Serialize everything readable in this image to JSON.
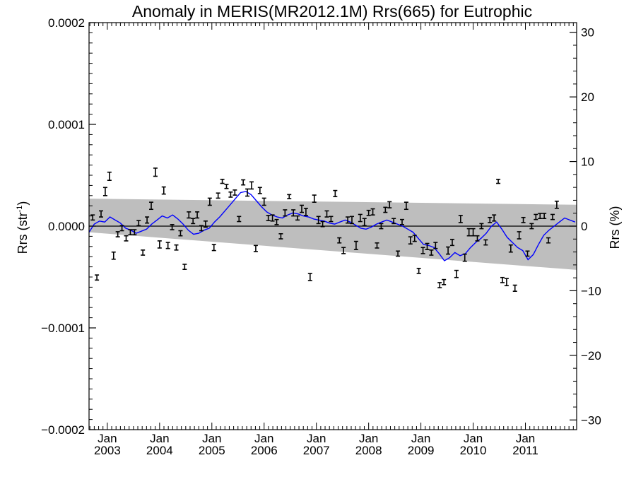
{
  "chart_data": {
    "type": "scatter",
    "title": "Anomaly in MERIS(MR2012.1M) Rrs(665) for Eutrophic",
    "ylabel_left": {
      "base": "Rrs (str",
      "sup": "-1",
      "close": ")"
    },
    "ylabel_right": "Rrs (%)",
    "xlim": [
      2002.65,
      2011.98
    ],
    "ylim_left": [
      -0.0002,
      0.0002
    ],
    "ylim_right": [
      -31.5,
      31.5
    ],
    "y_ticks_left": [
      {
        "value": -0.0002,
        "label": "-0.0002"
      },
      {
        "value": -0.0001,
        "label": "-0.0001"
      },
      {
        "value": 0.0,
        "label": "0.0000"
      },
      {
        "value": 0.0001,
        "label": "0.0001"
      },
      {
        "value": 0.0002,
        "label": "0.0002"
      }
    ],
    "y_ticks_right": [
      {
        "value": -30,
        "label": "-30"
      },
      {
        "value": -20,
        "label": "-20"
      },
      {
        "value": -10,
        "label": "-10"
      },
      {
        "value": 0,
        "label": "0"
      },
      {
        "value": 10,
        "label": "10"
      },
      {
        "value": 20,
        "label": "20"
      },
      {
        "value": 30,
        "label": "30"
      }
    ],
    "x_ticks": [
      {
        "value": 2003.0,
        "month": "Jan",
        "year": "2003"
      },
      {
        "value": 2004.0,
        "month": "Jan",
        "year": "2004"
      },
      {
        "value": 2005.0,
        "month": "Jan",
        "year": "2005"
      },
      {
        "value": 2006.0,
        "month": "Jan",
        "year": "2006"
      },
      {
        "value": 2007.0,
        "month": "Jan",
        "year": "2007"
      },
      {
        "value": 2008.0,
        "month": "Jan",
        "year": "2008"
      },
      {
        "value": 2009.0,
        "month": "Jan",
        "year": "2009"
      },
      {
        "value": 2010.0,
        "month": "Jan",
        "year": "2010"
      },
      {
        "value": 2011.0,
        "month": "Jan",
        "year": "2011"
      }
    ],
    "zero_line": 0.0,
    "confidence_band": {
      "color": "#bebebe",
      "x": [
        2002.65,
        2011.98
      ],
      "upper": [
        2.7e-05,
        2.1e-05
      ],
      "lower": [
        -6e-06,
        -4.3e-05
      ]
    },
    "smoothed_series": {
      "color": "#0000ff",
      "x": [
        2002.65,
        2002.75,
        2002.85,
        2002.95,
        2003.05,
        2003.15,
        2003.25,
        2003.35,
        2003.45,
        2003.55,
        2003.65,
        2003.75,
        2003.85,
        2003.95,
        2004.05,
        2004.15,
        2004.25,
        2004.35,
        2004.45,
        2004.55,
        2004.65,
        2004.75,
        2004.85,
        2004.95,
        2005.05,
        2005.15,
        2005.25,
        2005.35,
        2005.45,
        2005.55,
        2005.65,
        2005.75,
        2005.85,
        2005.95,
        2006.05,
        2006.15,
        2006.25,
        2006.35,
        2006.45,
        2006.55,
        2006.65,
        2006.75,
        2006.85,
        2006.95,
        2007.05,
        2007.15,
        2007.25,
        2007.35,
        2007.45,
        2007.55,
        2007.65,
        2007.75,
        2007.85,
        2007.95,
        2008.05,
        2008.15,
        2008.25,
        2008.35,
        2008.45,
        2008.55,
        2008.65,
        2008.75,
        2008.85,
        2008.95,
        2009.05,
        2009.15,
        2009.25,
        2009.35,
        2009.45,
        2009.55,
        2009.65,
        2009.75,
        2009.85,
        2009.95,
        2010.05,
        2010.15,
        2010.25,
        2010.35,
        2010.45,
        2010.55,
        2010.65,
        2010.75,
        2010.85,
        2010.95,
        2011.05,
        2011.15,
        2011.25,
        2011.35,
        2011.45,
        2011.55,
        2011.65,
        2011.75,
        2011.85,
        2011.95
      ],
      "y": [
        -6e-06,
        2e-06,
        5e-06,
        4e-06,
        9e-06,
        6e-06,
        3e-06,
        -2e-06,
        -4e-06,
        -7e-06,
        -5e-06,
        -3e-06,
        2e-06,
        6e-06,
        1e-05,
        8e-06,
        1.1e-05,
        7e-06,
        2e-06,
        -4e-06,
        -8e-06,
        -7e-06,
        -4e-06,
        -2e-06,
        4e-06,
        9e-06,
        1.5e-05,
        2.1e-05,
        2.7e-05,
        3.3e-05,
        3.4e-05,
        3.1e-05,
        2.5e-05,
        1.9e-05,
        1.4e-05,
        1.1e-05,
        9e-06,
        8e-06,
        1.1e-05,
        1.3e-05,
        1.2e-05,
        1e-05,
        9e-06,
        7e-06,
        6e-06,
        5e-06,
        3e-06,
        2e-06,
        4e-06,
        6e-06,
        4e-06,
        1e-06,
        -2e-06,
        -3e-06,
        -1e-06,
        2e-06,
        4e-06,
        6e-06,
        4e-06,
        2e-06,
        0.0,
        -3e-06,
        -6e-06,
        -1.2e-05,
        -1.8e-05,
        -1.9e-05,
        -2.1e-05,
        -2.7e-05,
        -3.4e-05,
        -3.1e-05,
        -2.6e-05,
        -2.9e-05,
        -2.7e-05,
        -2.1e-05,
        -1.6e-05,
        -1.2e-05,
        -7e-06,
        0.0,
        4e-06,
        -3e-06,
        -1.1e-05,
        -1.6e-05,
        -2.1e-05,
        -2.4e-05,
        -3.3e-05,
        -2.8e-05,
        -1.8e-05,
        -9e-06,
        -4e-06,
        0.0,
        4e-06,
        8e-06,
        6e-06,
        4e-06
      ]
    },
    "error_bars": {
      "color": "#000000",
      "points": [
        {
          "x": 2002.72,
          "y": 8.5e-06,
          "err": 2.5e-06
        },
        {
          "x": 2002.8,
          "y": -5.05e-05,
          "err": 2.5e-06
        },
        {
          "x": 2002.88,
          "y": 1.2e-05,
          "err": 3e-06
        },
        {
          "x": 2002.96,
          "y": 3.4e-05,
          "err": 4e-06
        },
        {
          "x": 2003.04,
          "y": 4.9e-05,
          "err": 4e-06
        },
        {
          "x": 2003.12,
          "y": -2.9e-05,
          "err": 3.5e-06
        },
        {
          "x": 2003.2,
          "y": -8e-06,
          "err": 2.5e-06
        },
        {
          "x": 2003.28,
          "y": -2e-06,
          "err": 2.5e-06
        },
        {
          "x": 2003.36,
          "y": -1.2e-05,
          "err": 2.5e-06
        },
        {
          "x": 2003.44,
          "y": -6e-06,
          "err": 2.5e-06
        },
        {
          "x": 2003.52,
          "y": -6e-06,
          "err": 2.5e-06
        },
        {
          "x": 2003.6,
          "y": 3e-06,
          "err": 2.5e-06
        },
        {
          "x": 2003.68,
          "y": -2.6e-05,
          "err": 2.5e-06
        },
        {
          "x": 2003.76,
          "y": 6e-06,
          "err": 3e-06
        },
        {
          "x": 2003.84,
          "y": 2e-05,
          "err": 3.5e-06
        },
        {
          "x": 2003.92,
          "y": 5.3e-05,
          "err": 4e-06
        },
        {
          "x": 2004.0,
          "y": -1.8e-05,
          "err": 3.5e-06
        },
        {
          "x": 2004.08,
          "y": 3.5e-05,
          "err": 3.5e-06
        },
        {
          "x": 2004.16,
          "y": -1.9e-05,
          "err": 3e-06
        },
        {
          "x": 2004.24,
          "y": -1e-06,
          "err": 2.5e-06
        },
        {
          "x": 2004.32,
          "y": -2.1e-05,
          "err": 2.5e-06
        },
        {
          "x": 2004.4,
          "y": -7e-06,
          "err": 2.5e-06
        },
        {
          "x": 2004.48,
          "y": -4e-05,
          "err": 2.5e-06
        },
        {
          "x": 2004.56,
          "y": 1.1e-05,
          "err": 3e-06
        },
        {
          "x": 2004.64,
          "y": 5e-06,
          "err": 2.5e-06
        },
        {
          "x": 2004.72,
          "y": 1.1e-05,
          "err": 3e-06
        },
        {
          "x": 2004.8,
          "y": -2e-06,
          "err": 2.5e-06
        },
        {
          "x": 2004.88,
          "y": 2e-06,
          "err": 3e-06
        },
        {
          "x": 2004.96,
          "y": 2.4e-05,
          "err": 3.5e-06
        },
        {
          "x": 2005.04,
          "y": -2.1e-05,
          "err": 3e-06
        },
        {
          "x": 2005.12,
          "y": 3e-05,
          "err": 2.5e-06
        },
        {
          "x": 2005.2,
          "y": 4.4e-05,
          "err": 2e-06
        },
        {
          "x": 2005.28,
          "y": 3.9e-05,
          "err": 2e-06
        },
        {
          "x": 2005.36,
          "y": 3.1e-05,
          "err": 2.5e-06
        },
        {
          "x": 2005.44,
          "y": 3.3e-05,
          "err": 2.5e-06
        },
        {
          "x": 2005.52,
          "y": 7e-06,
          "err": 2.5e-06
        },
        {
          "x": 2005.6,
          "y": 4.3e-05,
          "err": 2.5e-06
        },
        {
          "x": 2005.68,
          "y": 3.3e-05,
          "err": 3.5e-06
        },
        {
          "x": 2005.76,
          "y": 4e-05,
          "err": 3.5e-06
        },
        {
          "x": 2005.84,
          "y": -2.2e-05,
          "err": 3e-06
        },
        {
          "x": 2005.92,
          "y": 3.5e-05,
          "err": 3e-06
        },
        {
          "x": 2006.0,
          "y": 2.4e-05,
          "err": 3.5e-06
        },
        {
          "x": 2006.08,
          "y": 8e-06,
          "err": 2.5e-06
        },
        {
          "x": 2006.16,
          "y": 8e-06,
          "err": 3e-06
        },
        {
          "x": 2006.24,
          "y": 4e-06,
          "err": 2.5e-06
        },
        {
          "x": 2006.32,
          "y": -1e-05,
          "err": 2.5e-06
        },
        {
          "x": 2006.4,
          "y": 1.3e-05,
          "err": 3e-06
        },
        {
          "x": 2006.48,
          "y": 2.9e-05,
          "err": 2e-06
        },
        {
          "x": 2006.56,
          "y": 1.3e-05,
          "err": 3e-06
        },
        {
          "x": 2006.64,
          "y": 8e-06,
          "err": 2e-06
        },
        {
          "x": 2006.72,
          "y": 1.7e-05,
          "err": 3.5e-06
        },
        {
          "x": 2006.8,
          "y": 1.4e-05,
          "err": 3.5e-06
        },
        {
          "x": 2006.88,
          "y": -5e-05,
          "err": 3.5e-06
        },
        {
          "x": 2006.96,
          "y": 2.7e-05,
          "err": 3.5e-06
        },
        {
          "x": 2007.04,
          "y": 6e-06,
          "err": 3.5e-06
        },
        {
          "x": 2007.12,
          "y": 2e-06,
          "err": 2.5e-06
        },
        {
          "x": 2007.2,
          "y": 1.2e-05,
          "err": 3e-06
        },
        {
          "x": 2007.28,
          "y": 7e-06,
          "err": 2.5e-06
        },
        {
          "x": 2007.36,
          "y": 3.2e-05,
          "err": 3e-06
        },
        {
          "x": 2007.44,
          "y": -1.4e-05,
          "err": 2.5e-06
        },
        {
          "x": 2007.52,
          "y": -2.4e-05,
          "err": 3e-06
        },
        {
          "x": 2007.6,
          "y": 6e-06,
          "err": 3e-06
        },
        {
          "x": 2007.68,
          "y": 6e-06,
          "err": 3.5e-06
        },
        {
          "x": 2007.76,
          "y": -1.9e-05,
          "err": 4e-06
        },
        {
          "x": 2007.84,
          "y": 8e-06,
          "err": 3.5e-06
        },
        {
          "x": 2007.92,
          "y": 4e-06,
          "err": 3.5e-06
        },
        {
          "x": 2008.0,
          "y": 1.3e-05,
          "err": 2.5e-06
        },
        {
          "x": 2008.08,
          "y": 1.4e-05,
          "err": 3e-06
        },
        {
          "x": 2008.16,
          "y": -1.9e-05,
          "err": 2.5e-06
        },
        {
          "x": 2008.24,
          "y": 0.0,
          "err": 2.5e-06
        },
        {
          "x": 2008.32,
          "y": 1.6e-05,
          "err": 2.5e-06
        },
        {
          "x": 2008.4,
          "y": 2.1e-05,
          "err": 3e-06
        },
        {
          "x": 2008.48,
          "y": 5e-06,
          "err": 2.5e-06
        },
        {
          "x": 2008.56,
          "y": -2.7e-05,
          "err": 2.5e-06
        },
        {
          "x": 2008.64,
          "y": 4e-06,
          "err": 2.5e-06
        },
        {
          "x": 2008.72,
          "y": 2e-05,
          "err": 3.5e-06
        },
        {
          "x": 2008.8,
          "y": -1.4e-05,
          "err": 3.5e-06
        },
        {
          "x": 2008.88,
          "y": -1.2e-05,
          "err": 3e-06
        },
        {
          "x": 2008.96,
          "y": -4.4e-05,
          "err": 2.5e-06
        },
        {
          "x": 2009.04,
          "y": -2.4e-05,
          "err": 3e-06
        },
        {
          "x": 2009.12,
          "y": -2e-05,
          "err": 3e-06
        },
        {
          "x": 2009.2,
          "y": -2.6e-05,
          "err": 2.5e-06
        },
        {
          "x": 2009.28,
          "y": -1.9e-05,
          "err": 3e-06
        },
        {
          "x": 2009.36,
          "y": -5.8e-05,
          "err": 2.5e-06
        },
        {
          "x": 2009.44,
          "y": -5.5e-05,
          "err": 2.5e-06
        },
        {
          "x": 2009.52,
          "y": -2.4e-05,
          "err": 3.5e-06
        },
        {
          "x": 2009.6,
          "y": -1.6e-05,
          "err": 3e-06
        },
        {
          "x": 2009.68,
          "y": -4.7e-05,
          "err": 3.5e-06
        },
        {
          "x": 2009.76,
          "y": 7e-06,
          "err": 3.5e-06
        },
        {
          "x": 2009.84,
          "y": -3.1e-05,
          "err": 3.5e-06
        },
        {
          "x": 2009.92,
          "y": -6e-06,
          "err": 3.5e-06
        },
        {
          "x": 2010.0,
          "y": -6e-06,
          "err": 3.5e-06
        },
        {
          "x": 2010.08,
          "y": -1.2e-05,
          "err": 2.5e-06
        },
        {
          "x": 2010.16,
          "y": 0.0,
          "err": 2.5e-06
        },
        {
          "x": 2010.24,
          "y": -1.6e-05,
          "err": 2.5e-06
        },
        {
          "x": 2010.32,
          "y": 6e-06,
          "err": 2.5e-06
        },
        {
          "x": 2010.4,
          "y": 8e-06,
          "err": 3e-06
        },
        {
          "x": 2010.48,
          "y": 4.4e-05,
          "err": 2e-06
        },
        {
          "x": 2010.56,
          "y": -5.3e-05,
          "err": 2.5e-06
        },
        {
          "x": 2010.64,
          "y": -5.5e-05,
          "err": 3.5e-06
        },
        {
          "x": 2010.72,
          "y": -2.2e-05,
          "err": 3.5e-06
        },
        {
          "x": 2010.8,
          "y": -6.1e-05,
          "err": 3e-06
        },
        {
          "x": 2010.88,
          "y": -9e-06,
          "err": 3.5e-06
        },
        {
          "x": 2010.96,
          "y": 6e-06,
          "err": 2.5e-06
        },
        {
          "x": 2011.04,
          "y": -2.7e-05,
          "err": 2.5e-06
        },
        {
          "x": 2011.12,
          "y": 0.0,
          "err": 2.5e-06
        },
        {
          "x": 2011.2,
          "y": 9e-06,
          "err": 2.5e-06
        },
        {
          "x": 2011.28,
          "y": 1e-05,
          "err": 2.5e-06
        },
        {
          "x": 2011.36,
          "y": 1e-05,
          "err": 2.5e-06
        },
        {
          "x": 2011.44,
          "y": -1.4e-05,
          "err": 2.5e-06
        },
        {
          "x": 2011.52,
          "y": 9e-06,
          "err": 2.5e-06
        },
        {
          "x": 2011.6,
          "y": 2.1e-05,
          "err": 3.5e-06
        }
      ]
    }
  }
}
